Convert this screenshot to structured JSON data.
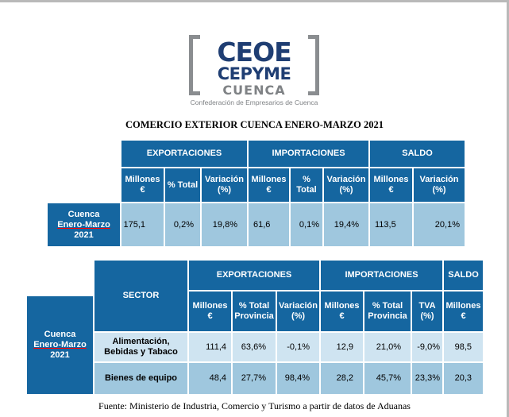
{
  "logo": {
    "ceoe": "CEOE",
    "cepyme": "CEPYME",
    "cuenca": "CUENCA",
    "confederacion": "Confederación de Empresarios de Cuenca"
  },
  "title": "COMERCIO EXTERIOR CUENCA ENERO-MARZO 2021",
  "table1": {
    "groups": {
      "exportaciones": "EXPORTACIONES",
      "importaciones": "IMPORTACIONES",
      "saldo": "SALDO"
    },
    "headers": {
      "exp_millones": "Millones €",
      "exp_pct_total": "% Total",
      "exp_variacion": "Variación (%)",
      "imp_millones": "Millones €",
      "imp_pct_total": "% Total",
      "imp_variacion": "Variación (%)",
      "saldo_millones": "Millones €",
      "saldo_variacion": "Variación (%)"
    },
    "row_label": {
      "line1": "Cuenca",
      "line2": "Enero-Marzo",
      "line3": "2021"
    },
    "values": {
      "exp_millones": "175,1",
      "exp_pct_total": "0,2%",
      "exp_variacion": "19,8%",
      "imp_millones": "61,6",
      "imp_pct_total": "0,1%",
      "imp_variacion": "19,4%",
      "saldo_millones": "113,5",
      "saldo_variacion": "20,1%"
    }
  },
  "table2": {
    "sector_header": "SECTOR",
    "groups": {
      "exportaciones": "EXPORTACIONES",
      "importaciones": "IMPORTACIONES",
      "saldo": "SALDO"
    },
    "headers": {
      "exp_millones": "Millones €",
      "exp_pct_total_provincia": "% Total Provincia",
      "exp_variacion": "Variación (%)",
      "imp_millones": "Millones €",
      "imp_pct_total_provincia": "% Total Provincia",
      "imp_tva": "TVA (%)",
      "saldo_millones": "Millones €"
    },
    "row_label": {
      "line1": "Cuenca",
      "line2": "Enero-Marzo",
      "line3": "2021"
    },
    "rows": [
      {
        "sector": "Alimentación, Bebidas y Tabaco",
        "exp_millones": "111,4",
        "exp_pct_total_provincia": "63,6%",
        "exp_variacion": "-0,1%",
        "imp_millones": "12,9",
        "imp_pct_total_provincia": "21,0%",
        "imp_tva": "-9,0%",
        "saldo_millones": "98,5"
      },
      {
        "sector": "Bienes de equipo",
        "exp_millones": "48,4",
        "exp_pct_total_provincia": "27,7%",
        "exp_variacion": "98,4%",
        "imp_millones": "28,2",
        "imp_pct_total_provincia": "45,7%",
        "imp_tva": "23,3%",
        "saldo_millones": "20,3"
      }
    ]
  },
  "footer": "Fuente: Ministerio de Industria, Comercio y Turismo a partir de datos de Aduanas"
}
